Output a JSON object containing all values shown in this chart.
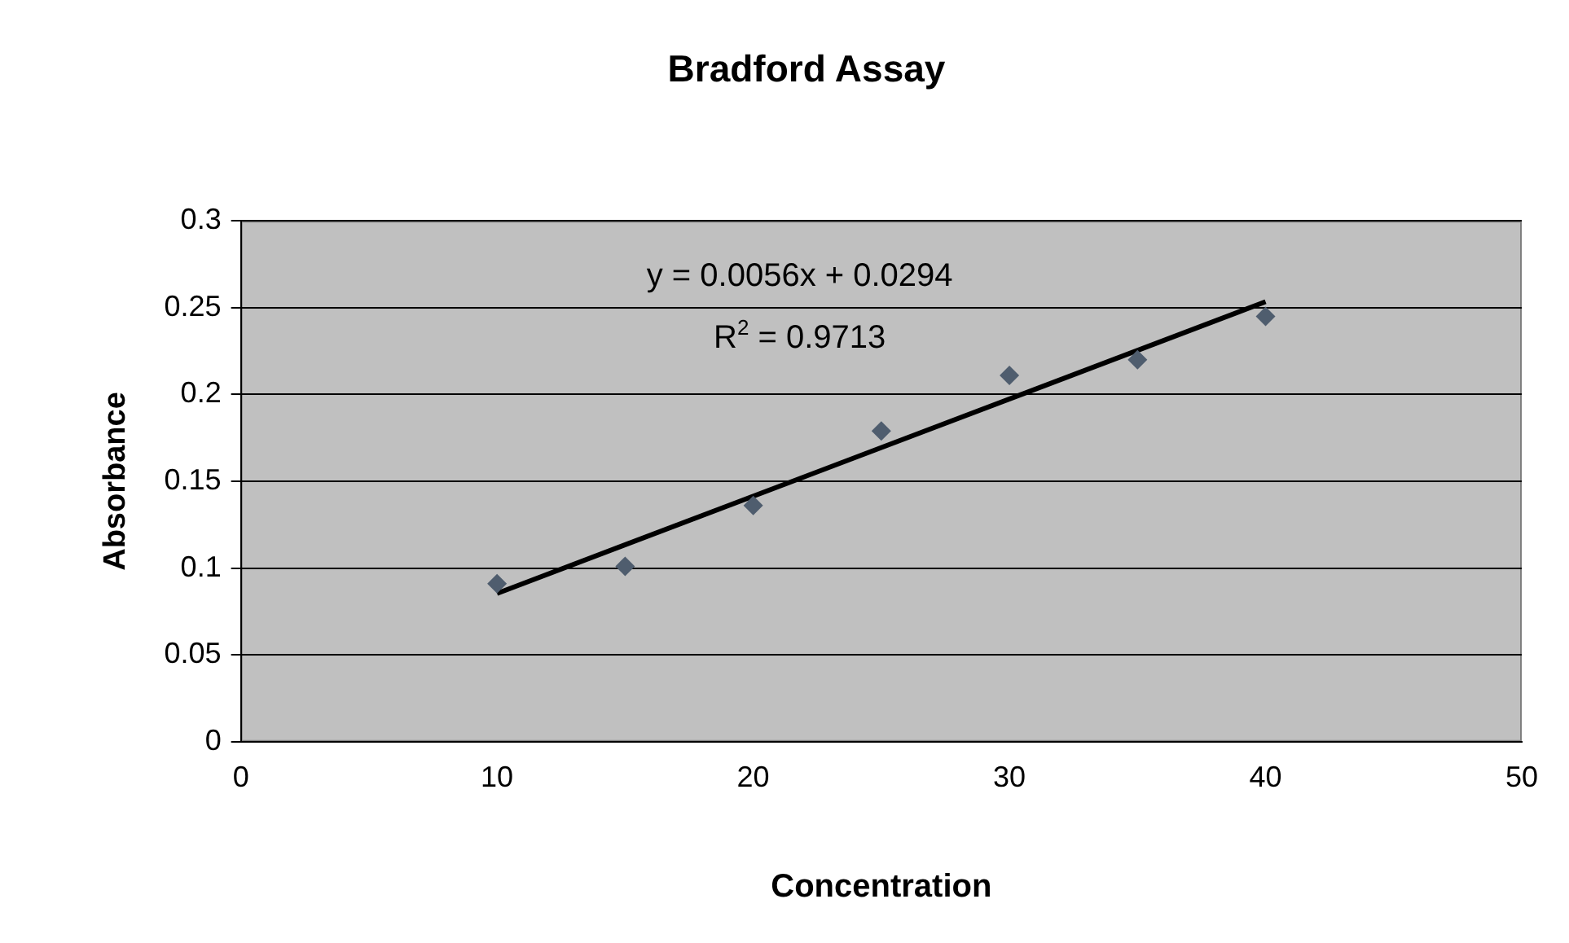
{
  "chart_data": {
    "type": "scatter",
    "title": "Bradford Assay",
    "xlabel": "Concentration",
    "ylabel": "Absorbance",
    "series": [
      {
        "type": "scatter",
        "color": "#4f5d6e",
        "marker": "diamond",
        "x": [
          10,
          15,
          20,
          25,
          30,
          35,
          40
        ],
        "values": [
          0.091,
          0.101,
          0.136,
          0.179,
          0.211,
          0.22,
          0.245
        ]
      },
      {
        "type": "line",
        "color": "#000000",
        "marker": "none",
        "x": [
          10,
          40
        ],
        "values": [
          0.0854,
          0.2534
        ]
      }
    ],
    "annotations": [
      "y = 0.0056x + 0.0294",
      "R$^{2}$ = 0.9713"
    ],
    "xlim": [
      0,
      50
    ],
    "xticks": [
      0,
      10,
      20,
      30,
      40,
      50
    ],
    "ylim": [
      0,
      0.3
    ],
    "yticks": [
      0,
      0.05,
      0.1,
      0.15,
      0.2,
      0.25,
      0.3
    ],
    "grid": "y",
    "legend": false
  }
}
